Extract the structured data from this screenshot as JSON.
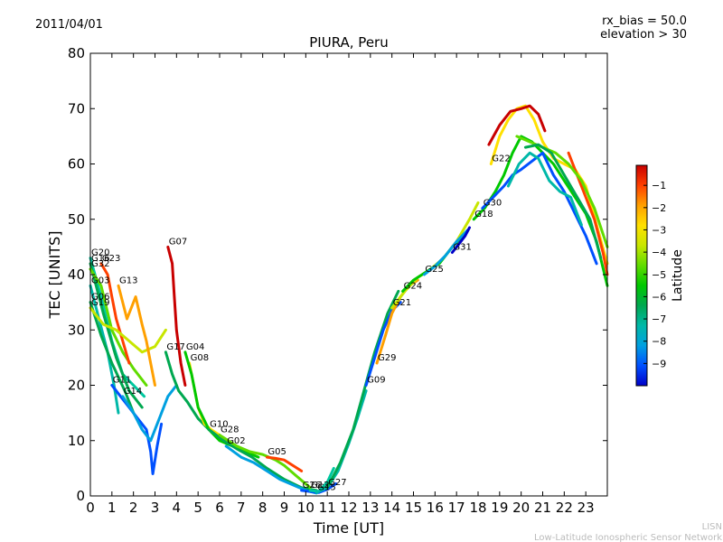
{
  "header": {
    "date": "2011/04/01",
    "rx_bias": "rx_bias = 50.0",
    "elevation": "elevation > 30"
  },
  "footer": {
    "line1": "LISN",
    "line2": "Low-Latitude Ionospheric Sensor Network"
  },
  "colors": {
    "cbar": [
      "#0000c8",
      "#0050ff",
      "#00a0e0",
      "#00b8a8",
      "#00a850",
      "#00c800",
      "#60dc00",
      "#c8e600",
      "#ffe000",
      "#ffa000",
      "#ff4000",
      "#c80000"
    ]
  },
  "chart_data": {
    "type": "line",
    "title": "PIURA, Peru",
    "xlabel": "Time [UT]",
    "ylabel": "TEC [UNITS]",
    "xlim": [
      0,
      24
    ],
    "ylim": [
      0,
      80
    ],
    "xticks": [
      0,
      1,
      2,
      3,
      4,
      5,
      6,
      7,
      8,
      9,
      10,
      11,
      12,
      13,
      14,
      15,
      16,
      17,
      18,
      19,
      20,
      21,
      22,
      23
    ],
    "yticks": [
      0,
      10,
      20,
      30,
      40,
      50,
      60,
      70,
      80
    ],
    "grid": false,
    "colorbar": {
      "label": "Latitude",
      "range": [
        -10,
        -0.1
      ],
      "ticks": [
        -1,
        -2,
        -3,
        -4,
        -5,
        -6,
        -7,
        -8,
        -9
      ]
    },
    "series": [
      {
        "name": "G20",
        "color": "#00c8a0",
        "points": [
          [
            0,
            43
          ],
          [
            0.5,
            36
          ],
          [
            1,
            28
          ],
          [
            1.5,
            22
          ],
          [
            2,
            20
          ],
          [
            2.5,
            18
          ]
        ]
      },
      {
        "name": "G16",
        "color": "#00a850",
        "points": [
          [
            0,
            42
          ],
          [
            0.6,
            33
          ],
          [
            1.2,
            25
          ],
          [
            1.8,
            19
          ],
          [
            2.4,
            16
          ]
        ]
      },
      {
        "name": "G32",
        "color": "#60dc00",
        "points": [
          [
            0,
            41
          ],
          [
            0.5,
            38
          ],
          [
            1,
            30
          ],
          [
            1.5,
            26
          ],
          [
            2,
            23
          ],
          [
            2.6,
            20
          ]
        ]
      },
      {
        "name": "G23",
        "color": "#ff4000",
        "points": [
          [
            0.5,
            42
          ],
          [
            0.8,
            40
          ],
          [
            1,
            36
          ],
          [
            1.2,
            32
          ],
          [
            1.5,
            28
          ],
          [
            1.8,
            24
          ]
        ]
      },
      {
        "name": "G03",
        "color": "#00b8a8",
        "points": [
          [
            0,
            38
          ],
          [
            0.4,
            32
          ],
          [
            0.8,
            26
          ],
          [
            1.1,
            20
          ],
          [
            1.3,
            15
          ]
        ]
      },
      {
        "name": "G06",
        "color": "#00a850",
        "points": [
          [
            0,
            35
          ],
          [
            0.5,
            29
          ],
          [
            1,
            24
          ],
          [
            1.6,
            19
          ],
          [
            2,
            15
          ]
        ]
      },
      {
        "name": "G19",
        "color": "#c8e600",
        "points": [
          [
            0,
            34
          ],
          [
            0.6,
            31
          ],
          [
            1.2,
            30
          ],
          [
            1.8,
            28
          ],
          [
            2.4,
            26
          ],
          [
            3,
            27
          ],
          [
            3.5,
            30
          ]
        ]
      },
      {
        "name": "G13",
        "color": "#ffa000",
        "points": [
          [
            1.3,
            38
          ],
          [
            1.7,
            32
          ],
          [
            2.1,
            36
          ],
          [
            2.4,
            31
          ],
          [
            2.6,
            28
          ],
          [
            2.8,
            24
          ],
          [
            3,
            20
          ]
        ]
      },
      {
        "name": "G11",
        "color": "#0050ff",
        "points": [
          [
            1,
            20
          ],
          [
            1.4,
            18
          ],
          [
            1.8,
            16
          ],
          [
            2.2,
            14
          ],
          [
            2.6,
            12
          ],
          [
            2.8,
            8
          ],
          [
            2.9,
            4
          ],
          [
            3.1,
            9
          ],
          [
            3.3,
            13
          ]
        ]
      },
      {
        "name": "G14",
        "color": "#00a0e0",
        "points": [
          [
            1.5,
            18
          ],
          [
            2,
            15
          ],
          [
            2.4,
            12
          ],
          [
            2.8,
            10
          ],
          [
            3.2,
            14
          ],
          [
            3.6,
            18
          ],
          [
            4,
            20
          ]
        ]
      },
      {
        "name": "G07",
        "color": "#c80000",
        "points": [
          [
            3.6,
            45
          ],
          [
            3.8,
            42
          ],
          [
            3.9,
            36
          ],
          [
            4,
            30
          ],
          [
            4.2,
            24
          ],
          [
            4.4,
            20
          ]
        ]
      },
      {
        "name": "G17",
        "color": "#00a850",
        "points": [
          [
            3.5,
            26
          ],
          [
            3.8,
            22
          ],
          [
            4.1,
            19
          ],
          [
            4.5,
            17
          ],
          [
            5,
            14
          ],
          [
            5.5,
            12
          ]
        ]
      },
      {
        "name": "G08",
        "color": "#ffe000",
        "points": [
          [
            4.6,
            24
          ],
          [
            4.8,
            20
          ],
          [
            5,
            16
          ],
          [
            5.3,
            13
          ],
          [
            5.6,
            12
          ],
          [
            6,
            11
          ]
        ]
      },
      {
        "name": "G04",
        "color": "#00c800",
        "points": [
          [
            4.4,
            26
          ],
          [
            4.7,
            22
          ],
          [
            5,
            16
          ],
          [
            5.5,
            12
          ],
          [
            6,
            10
          ],
          [
            6.6,
            9
          ],
          [
            7.2,
            8
          ],
          [
            7.8,
            7
          ]
        ]
      },
      {
        "name": "G10",
        "color": "#00a850",
        "points": [
          [
            5.5,
            12
          ],
          [
            6.2,
            10
          ],
          [
            6.8,
            8.5
          ],
          [
            7.5,
            7
          ],
          [
            8.2,
            5
          ],
          [
            9,
            3
          ],
          [
            9.8,
            1.5
          ],
          [
            10.5,
            1
          ]
        ]
      },
      {
        "name": "G28",
        "color": "#60dc00",
        "points": [
          [
            6,
            11
          ],
          [
            6.8,
            9
          ],
          [
            7.4,
            8
          ],
          [
            8,
            7.5
          ],
          [
            8.6,
            6.5
          ],
          [
            9,
            5.5
          ],
          [
            9.6,
            3.5
          ],
          [
            10.2,
            1.5
          ]
        ]
      },
      {
        "name": "G02",
        "color": "#00a0e0",
        "points": [
          [
            6.3,
            9
          ],
          [
            7,
            7
          ],
          [
            7.6,
            6
          ],
          [
            8.2,
            4.5
          ],
          [
            8.8,
            3
          ],
          [
            9.4,
            2
          ],
          [
            10,
            1
          ],
          [
            10.5,
            0.5
          ]
        ]
      },
      {
        "name": "G05",
        "color": "#ff4000",
        "points": [
          [
            8.2,
            7
          ],
          [
            8.6,
            6.8
          ],
          [
            9,
            6.5
          ],
          [
            9.4,
            5.5
          ],
          [
            9.8,
            4.5
          ]
        ]
      },
      {
        "name": "G26",
        "color": "#0050ff",
        "points": [
          [
            9.8,
            1
          ],
          [
            10.2,
            0.8
          ],
          [
            10.6,
            0.6
          ],
          [
            11,
            1.2
          ],
          [
            11.4,
            2.2
          ]
        ]
      },
      {
        "name": "G12",
        "color": "#00c8a0",
        "points": [
          [
            10.2,
            1
          ],
          [
            10.6,
            0.8
          ],
          [
            11,
            2.5
          ],
          [
            11.3,
            5
          ]
        ]
      },
      {
        "name": "G15",
        "color": "#00b8a8",
        "points": [
          [
            10.5,
            0.6
          ],
          [
            11,
            1.5
          ],
          [
            11.5,
            4.5
          ],
          [
            12,
            9.5
          ],
          [
            12.4,
            14
          ],
          [
            12.8,
            19
          ]
        ]
      },
      {
        "name": "G27",
        "color": "#00a850",
        "points": [
          [
            11,
            1.5
          ],
          [
            11.6,
            6
          ],
          [
            12.2,
            12
          ],
          [
            12.7,
            19
          ],
          [
            13.2,
            26
          ],
          [
            13.8,
            33
          ],
          [
            14.3,
            37
          ]
        ]
      },
      {
        "name": "G09",
        "color": "#0050ff",
        "points": [
          [
            12.8,
            20
          ],
          [
            13.2,
            25
          ],
          [
            13.6,
            30
          ],
          [
            14,
            33.5
          ],
          [
            14.4,
            35
          ]
        ]
      },
      {
        "name": "G29",
        "color": "#ffa000",
        "points": [
          [
            13.3,
            24
          ],
          [
            13.7,
            29
          ],
          [
            14,
            33
          ],
          [
            14.4,
            36
          ],
          [
            14.8,
            38
          ],
          [
            15.2,
            39
          ]
        ]
      },
      {
        "name": "G21",
        "color": "#c8e600",
        "points": [
          [
            14,
            34
          ],
          [
            14.6,
            37
          ],
          [
            15.2,
            39.5
          ],
          [
            15.8,
            41
          ],
          [
            16.4,
            43
          ],
          [
            17,
            46
          ],
          [
            17.6,
            50
          ],
          [
            18,
            53
          ]
        ]
      },
      {
        "name": "G24",
        "color": "#00c800",
        "points": [
          [
            14.5,
            37
          ],
          [
            15,
            39
          ],
          [
            15.6,
            40.5
          ],
          [
            16.2,
            42
          ],
          [
            16.8,
            45
          ],
          [
            17.4,
            47.5
          ]
        ]
      },
      {
        "name": "G25",
        "color": "#00a0e0",
        "points": [
          [
            15.5,
            40
          ],
          [
            16,
            41.5
          ],
          [
            16.5,
            43.5
          ],
          [
            17,
            46
          ],
          [
            17.5,
            48
          ]
        ]
      },
      {
        "name": "G31",
        "color": "#0000c8",
        "points": [
          [
            16.8,
            44
          ],
          [
            17.1,
            45.5
          ],
          [
            17.4,
            47
          ],
          [
            17.6,
            48.5
          ]
        ]
      },
      {
        "name": "G18",
        "color": "#00c800",
        "points": [
          [
            17.8,
            50
          ],
          [
            18.3,
            52
          ],
          [
            18.8,
            55
          ],
          [
            19.2,
            58
          ],
          [
            19.6,
            62
          ],
          [
            20,
            65
          ],
          [
            20.5,
            64
          ],
          [
            21,
            62
          ],
          [
            21.5,
            60
          ],
          [
            22,
            57
          ],
          [
            22.5,
            54
          ],
          [
            23,
            51
          ],
          [
            23.5,
            46
          ],
          [
            24,
            38
          ]
        ]
      },
      {
        "name": "G30",
        "color": "#0050ff",
        "points": [
          [
            18.2,
            52
          ],
          [
            18.7,
            54
          ],
          [
            19.2,
            56
          ],
          [
            19.6,
            58
          ],
          [
            20,
            59
          ],
          [
            20.5,
            60.5
          ],
          [
            21,
            62
          ],
          [
            21.5,
            58
          ],
          [
            22,
            55
          ],
          [
            22.5,
            51
          ],
          [
            23,
            47
          ],
          [
            23.5,
            42
          ]
        ]
      },
      {
        "name": "G22",
        "color": "#ffe000",
        "points": [
          [
            18.6,
            60
          ],
          [
            19,
            65
          ],
          [
            19.4,
            68
          ],
          [
            19.8,
            70
          ],
          [
            20.2,
            70.5
          ],
          [
            20.6,
            68
          ],
          [
            21,
            64
          ],
          [
            21.5,
            61
          ],
          [
            22,
            60
          ],
          [
            22.5,
            59
          ],
          [
            23,
            56
          ],
          [
            23.5,
            49
          ],
          [
            24,
            42
          ]
        ]
      },
      {
        "name": "",
        "color": "#c80000",
        "points": [
          [
            18.5,
            63.5
          ],
          [
            19,
            67
          ],
          [
            19.5,
            69.5
          ],
          [
            20,
            70
          ],
          [
            20.4,
            70.5
          ],
          [
            20.8,
            69
          ],
          [
            21.1,
            66
          ]
        ]
      },
      {
        "name": "",
        "color": "#00b8a8",
        "points": [
          [
            19.4,
            56
          ],
          [
            19.9,
            60
          ],
          [
            20.4,
            62
          ],
          [
            20.8,
            61
          ],
          [
            21.3,
            57
          ],
          [
            21.8,
            55
          ],
          [
            22.3,
            54
          ],
          [
            22.8,
            49
          ]
        ]
      },
      {
        "name": "",
        "color": "#ff4000",
        "points": [
          [
            22.2,
            62
          ],
          [
            22.6,
            58
          ],
          [
            23,
            54
          ],
          [
            23.4,
            50
          ],
          [
            23.8,
            44
          ],
          [
            24,
            40
          ]
        ]
      },
      {
        "name": "",
        "color": "#60dc00",
        "points": [
          [
            19.8,
            65
          ],
          [
            20.4,
            64
          ],
          [
            21,
            63
          ],
          [
            21.6,
            62
          ],
          [
            22.2,
            60
          ],
          [
            22.8,
            57
          ],
          [
            23.4,
            52
          ],
          [
            24,
            45
          ]
        ]
      },
      {
        "name": "",
        "color": "#00a850",
        "points": [
          [
            20.2,
            63
          ],
          [
            20.8,
            63.5
          ],
          [
            21.4,
            62
          ],
          [
            22,
            58
          ],
          [
            22.6,
            54
          ],
          [
            23.2,
            50
          ],
          [
            23.7,
            43
          ]
        ]
      }
    ]
  }
}
